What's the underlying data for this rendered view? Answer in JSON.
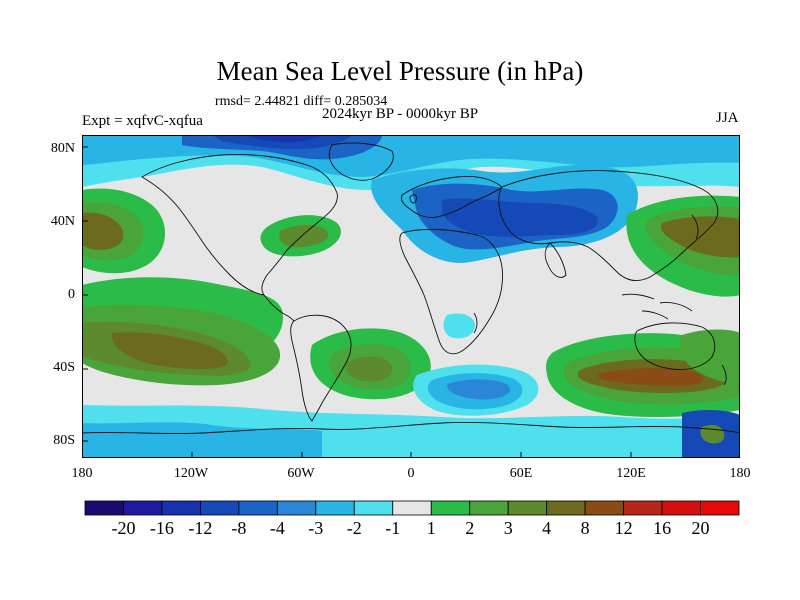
{
  "header": {
    "title": "Mean Sea Level Pressure (in hPa)",
    "stats": "rmsd= 2.44821 diff= 0.285034",
    "period": "2024kyr BP - 0000kyr BP",
    "experiment": "Expt = xqfvC-xqfua",
    "season": "JJA"
  },
  "axes": {
    "y_labels": [
      "80N",
      "40N",
      "0",
      "40S",
      "80S"
    ],
    "x_labels": [
      "180",
      "120W",
      "60W",
      "0",
      "60E",
      "120E",
      "180"
    ]
  },
  "colorbar": {
    "labels": [
      "-20",
      "-16",
      "-12",
      "-8",
      "-4",
      "-3",
      "-2",
      "-1",
      "1",
      "2",
      "3",
      "4",
      "8",
      "12",
      "16",
      "20"
    ],
    "colors": [
      "#1c0b6e",
      "#1f1aa0",
      "#1733b0",
      "#1649b8",
      "#1b63c4",
      "#2a86d6",
      "#28b4e4",
      "#4fe0ee",
      "#e6e6e6",
      "#2bbb48",
      "#49a43a",
      "#5c8a2c",
      "#6b6a1e",
      "#8a4b14",
      "#b8261a",
      "#d60f10",
      "#e80a0a"
    ]
  },
  "map_colors": {
    "ocean_background": "#e6e6e6",
    "coastline": "#111111"
  }
}
